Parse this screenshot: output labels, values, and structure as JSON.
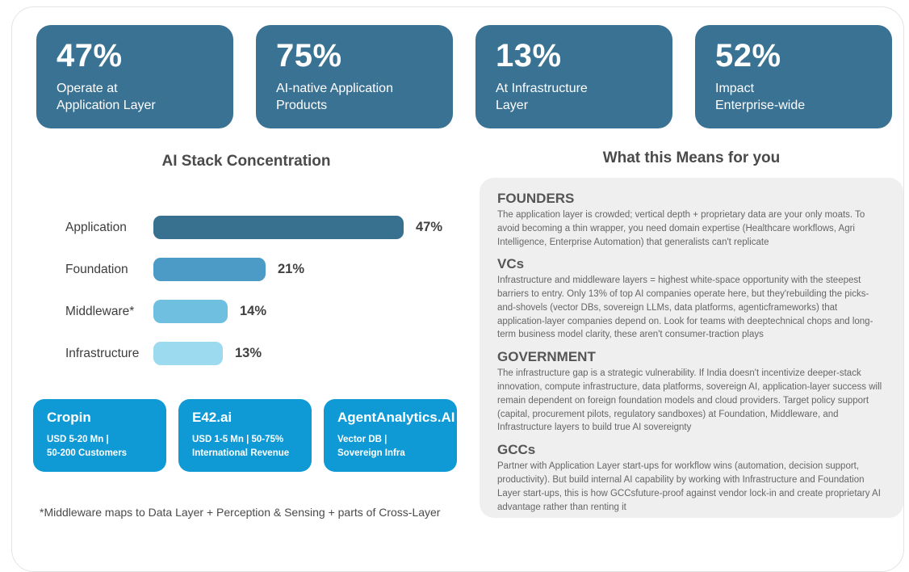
{
  "colors": {
    "stat_card_bg": "#3a7294",
    "company_card_bg": "#0f9ad6",
    "panel_bg": "#efefef"
  },
  "stats": [
    {
      "value": "47%",
      "line1": "Operate at",
      "line2": "Application Layer"
    },
    {
      "value": "75%",
      "line1": "AI-native Application",
      "line2": "Products"
    },
    {
      "value": "13%",
      "line1": "At Infrastructure",
      "line2": "Layer"
    },
    {
      "value": "52%",
      "line1": "Impact",
      "line2": "Enterprise-wide"
    }
  ],
  "chart_data": {
    "type": "bar",
    "orientation": "horizontal",
    "title": "AI Stack Concentration",
    "categories": [
      "Application",
      "Foundation",
      "Middleware*",
      "Infrastructure"
    ],
    "values": [
      47,
      21,
      14,
      13
    ],
    "value_labels": [
      "47%",
      "21%",
      "14%",
      "13%"
    ],
    "xlim": [
      0,
      50
    ],
    "bar_colors": [
      "#38718f",
      "#4c9ac6",
      "#6fbfe0",
      "#9cdaef"
    ],
    "grid": false,
    "legend": false
  },
  "companies": [
    {
      "name": "Cropin",
      "line1": "USD 5-20 Mn |",
      "line2": "50-200 Customers"
    },
    {
      "name": "E42.ai",
      "line1": "USD 1-5 Mn | 50-75%",
      "line2": "International Revenue"
    },
    {
      "name": "AgentAnalytics.AI",
      "line1": "Vector DB |",
      "line2": "Sovereign Infra"
    }
  ],
  "insights": {
    "title": "What this Means for you",
    "sections": [
      {
        "heading": "FOUNDERS",
        "body": "The application layer is crowded; vertical depth + proprietary data are your only moats. To avoid becoming a thin wrapper, you need domain expertise (Healthcare workflows, Agri Intelligence, Enterprise Automation) that generalists can't replicate"
      },
      {
        "heading": "VCs",
        "body": "Infrastructure and middleware layers = highest white-space opportunity with the steepest barriers to entry. Only 13% of top AI companies operate here, but they'rebuilding the picks-and-shovels (vector DBs, sovereign LLMs, data platforms, agenticframeworks) that application-layer companies depend on. Look for teams with deeptechnical chops and long-term business model clarity, these aren't consumer-traction plays"
      },
      {
        "heading": "GOVERNMENT",
        "body": "The infrastructure gap is a strategic vulnerability. If India doesn't incentivize deeper-stack innovation, compute infrastructure, data platforms, sovereign AI, application-layer success will remain dependent on foreign foundation models and cloud providers. Target policy support (capital, procurement pilots, regulatory sandboxes) at Foundation, Middleware, and Infrastructure layers to build true AI sovereignty"
      },
      {
        "heading": "GCCs",
        "body": "Partner with Application Layer start-ups for workflow wins (automation, decision support, productivity). But build internal AI capability by working with Infrastructure and Foundation Layer start-ups, this is how GCCsfuture-proof against vendor lock-in and create proprietary AI advantage rather than renting it"
      }
    ]
  },
  "footnote": "*Middleware maps to Data Layer + Perception & Sensing + parts of Cross-Layer"
}
